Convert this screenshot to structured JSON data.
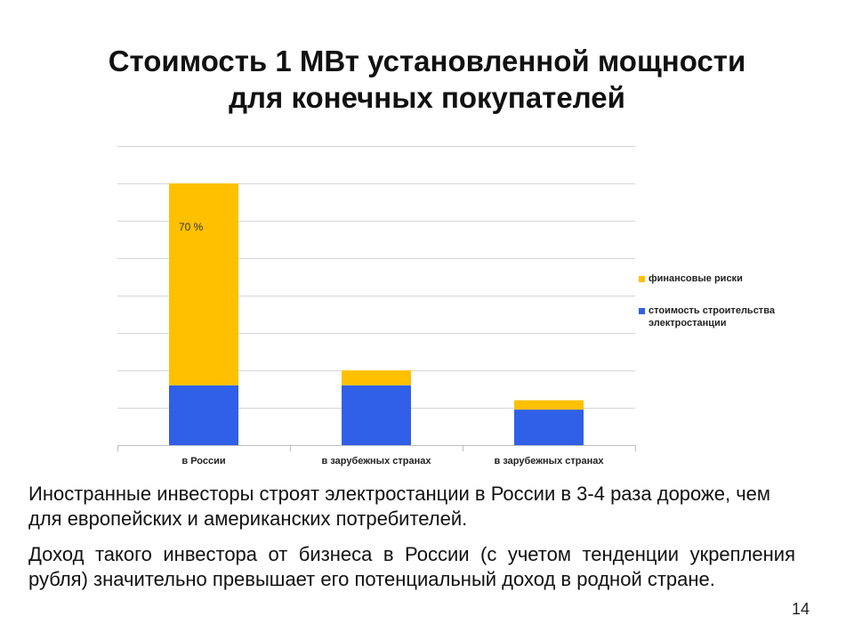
{
  "slide": {
    "title_line1": "Стоимость 1 МВт установленной мощности",
    "title_line2": "для конечных покупателей",
    "paragraph1": "Иностранные инвесторы строят электростанции в России в 3-4 раза дороже, чем для европейских и американских потребителей.",
    "paragraph2": "Доход такого инвестора от бизнеса в России (с учетом тенденции укрепления рубля) значительно превышает его потенциальный доход в родной стране.",
    "page_number": "14"
  },
  "chart_data": {
    "type": "bar",
    "stacked": true,
    "title": "",
    "xlabel": "",
    "ylabel": "",
    "categories": [
      "в России",
      "в зарубежных странах",
      "в зарубежных странах"
    ],
    "series": [
      {
        "name": "стоимость строительства электростанции",
        "color": "#3060E8",
        "values": [
          1.6,
          1.6,
          0.95
        ]
      },
      {
        "name": "финансовые риски",
        "color": "#FFC000",
        "values": [
          5.4,
          0.4,
          0.25
        ]
      }
    ],
    "legend_order": [
      1,
      0
    ],
    "legend_position": "right",
    "ylim": [
      0,
      8
    ],
    "ytick_step": 1,
    "grid": true,
    "y_tick_labels_shown": false,
    "annotations": [
      {
        "category_index": 0,
        "series_index": 1,
        "text": "70 %"
      }
    ]
  }
}
